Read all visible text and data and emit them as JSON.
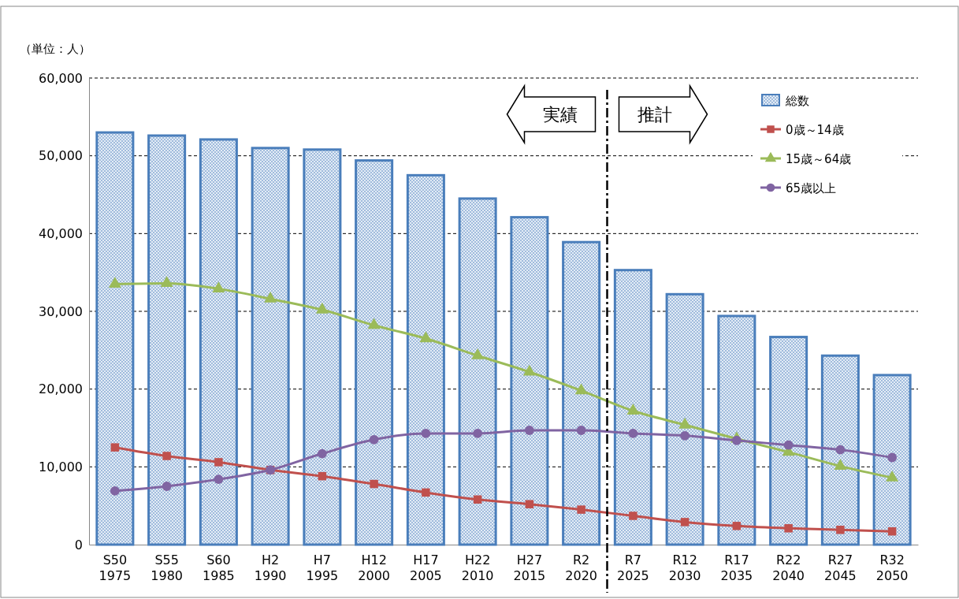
{
  "chart_data": {
    "type": "bar",
    "categories": [
      "S50\n1975",
      "S55\n1980",
      "S60\n1985",
      "H2\n1990",
      "H7\n1995",
      "H12\n2000",
      "H17\n2005",
      "H22\n2010",
      "H27\n2015",
      "R2\n2020",
      "R7\n2025",
      "R12\n2030",
      "R17\n2035",
      "R22\n2040",
      "R27\n2045",
      "R32\n2050"
    ],
    "series": [
      {
        "name": "総数",
        "color": "#4a7ebb",
        "values": [
          53000,
          52600,
          52100,
          51000,
          50800,
          49400,
          47500,
          44500,
          42100,
          38900,
          35300,
          32200,
          29400,
          26700,
          24300,
          21800
        ]
      },
      {
        "name": "0歳～14歳",
        "type": "line",
        "marker": "square",
        "color": "#c0504d",
        "values": [
          12500,
          11400,
          10600,
          9600,
          8800,
          7800,
          6700,
          5800,
          5200,
          4500,
          3700,
          2900,
          2400,
          2100,
          1900,
          1700
        ]
      },
      {
        "name": "15歳～64歳",
        "type": "line",
        "marker": "triangle",
        "color": "#9bbb59",
        "values": [
          33500,
          33600,
          32900,
          31600,
          30200,
          28200,
          26500,
          24300,
          22200,
          19800,
          17200,
          15400,
          13600,
          11900,
          10100,
          8600
        ]
      },
      {
        "name": "65歳以上",
        "type": "line",
        "marker": "circle",
        "color": "#8064a2",
        "values": [
          6900,
          7500,
          8400,
          9600,
          11700,
          13500,
          14300,
          14300,
          14700,
          14700,
          14300,
          14000,
          13400,
          12800,
          12200,
          11200
        ]
      }
    ],
    "ylim": [
      0,
      60000
    ],
    "yticks": [
      {
        "value": 0,
        "label": "0"
      },
      {
        "value": 10000,
        "label": "10,000"
      },
      {
        "value": 20000,
        "label": "20,000"
      },
      {
        "value": 30000,
        "label": "30,000"
      },
      {
        "value": 40000,
        "label": "40,000"
      },
      {
        "value": 50000,
        "label": "50,000"
      },
      {
        "value": 60000,
        "label": "60,000"
      }
    ],
    "grid": "y",
    "legend": "top right",
    "annotations": [
      "（単位：人）",
      "実績",
      "推計"
    ]
  }
}
